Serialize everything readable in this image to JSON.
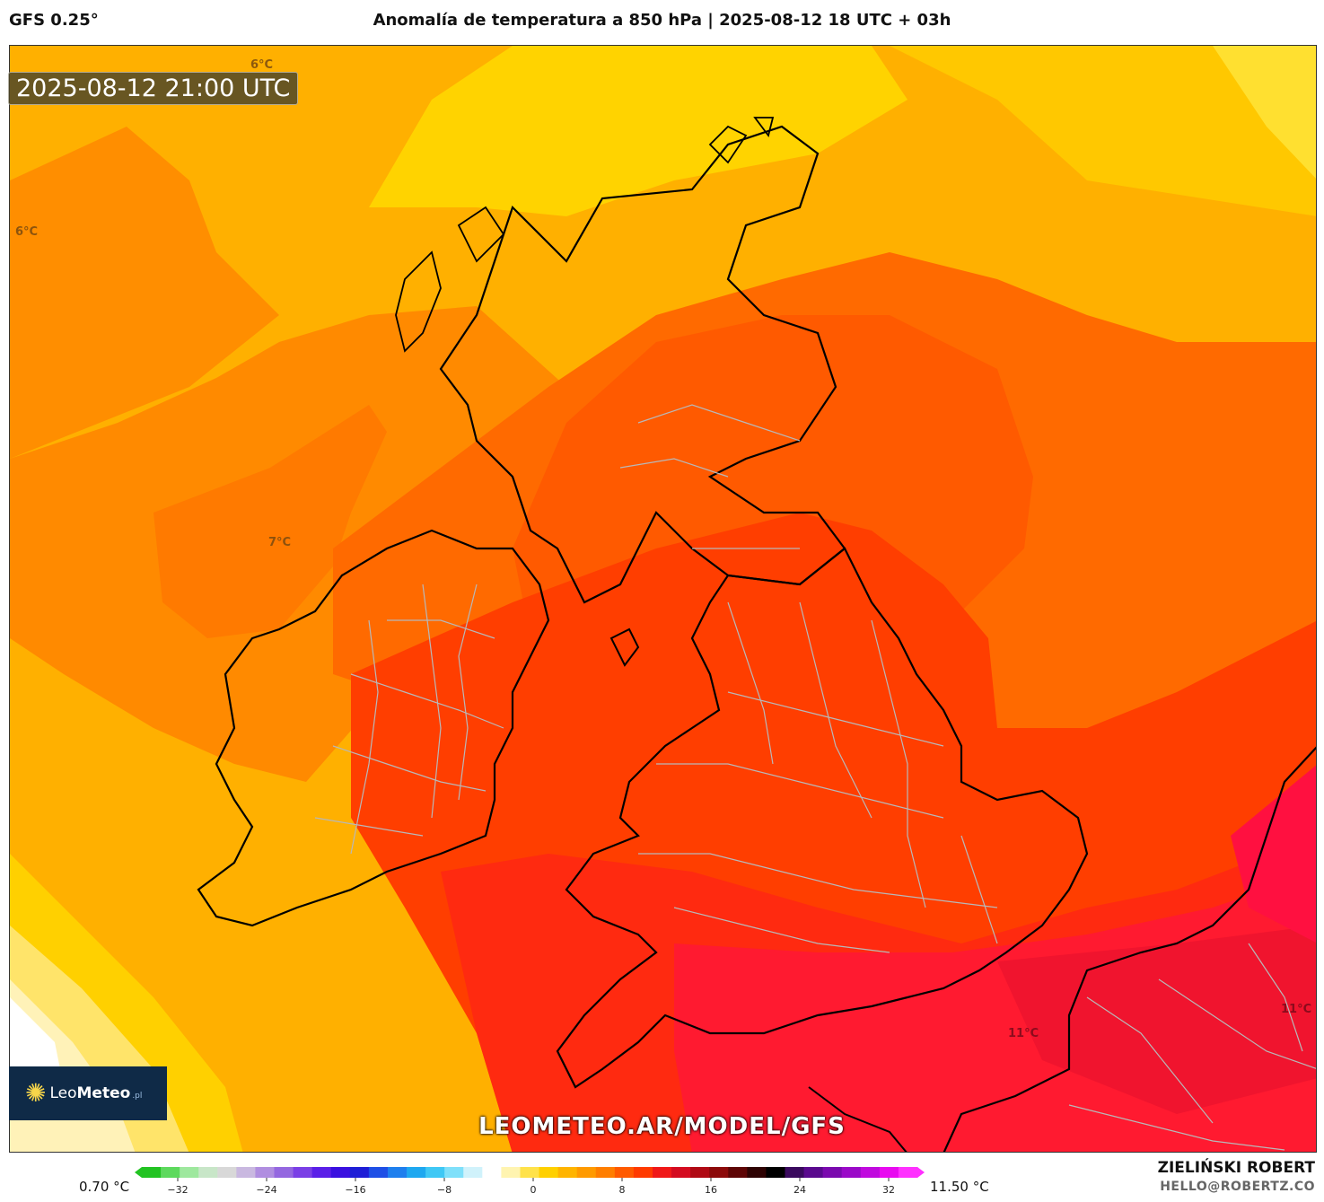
{
  "header": {
    "model": "GFS 0.25°",
    "title": "Anomalía de temperatura a 850 hPa | 2025-08-12 18 UTC + 03h"
  },
  "map": {
    "timestamp": "2025-08-12 21:00 UTC",
    "contour_labels": [
      "6°C",
      "6°C",
      "7°C",
      "11°C",
      "11°C"
    ],
    "watermark": "LEOMETEO.AR/MODEL/GFS",
    "logo": {
      "brand_light": "Leo",
      "brand_bold": "Meteo",
      "suffix": ".pl"
    }
  },
  "legend": {
    "min_value": "0.70 °C",
    "max_value": "11.50 °C",
    "ticks": [
      "−32",
      "−24",
      "−16",
      "−8",
      "0",
      "8",
      "16",
      "24",
      "32"
    ],
    "colors": [
      "#22c322",
      "#5dd95d",
      "#9ee89e",
      "#c8e6c8",
      "#d8d8d8",
      "#c9b8e0",
      "#b08ee0",
      "#9467e0",
      "#7a3fe6",
      "#5a1fe8",
      "#3a10e0",
      "#1e1ed6",
      "#1e4fe6",
      "#1e7fee",
      "#1ea8f0",
      "#3fc8f5",
      "#7fe0fa",
      "#d0f2fb",
      "#ffffff",
      "#fff4b0",
      "#ffe24a",
      "#ffd000",
      "#ffb400",
      "#ff9a00",
      "#ff7e00",
      "#ff5a00",
      "#ff3a00",
      "#f01818",
      "#d40c20",
      "#b00a14",
      "#8c0a0a",
      "#5e0505",
      "#2e0303",
      "#000000",
      "#3a0a5e",
      "#5a0a8e",
      "#7a0aae",
      "#9a0ac8",
      "#c00ade",
      "#e80af0",
      "#ff30ff"
    ]
  },
  "footer": {
    "author": "ZIELIŃSKI ROBERT",
    "email": "HELLO@ROBERTZ.CO"
  }
}
